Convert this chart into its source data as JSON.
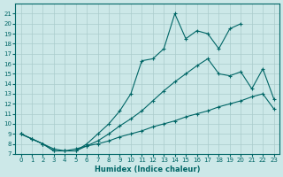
{
  "xlabel": "Humidex (Indice chaleur)",
  "bg_color": "#cce8e8",
  "grid_color": "#aacccc",
  "line_color": "#006666",
  "xlim": [
    -0.5,
    23.5
  ],
  "ylim": [
    7,
    22
  ],
  "yticks": [
    7,
    8,
    9,
    10,
    11,
    12,
    13,
    14,
    15,
    16,
    17,
    18,
    19,
    20,
    21
  ],
  "xticks": [
    0,
    1,
    2,
    3,
    4,
    5,
    6,
    7,
    8,
    9,
    10,
    11,
    12,
    13,
    14,
    15,
    16,
    17,
    18,
    19,
    20,
    21,
    22,
    23
  ],
  "line1_x": [
    0,
    1,
    2,
    3,
    4,
    5,
    6,
    7,
    8,
    9,
    10,
    11,
    12,
    13,
    14,
    15,
    16,
    17,
    18,
    19,
    20,
    21,
    22,
    23
  ],
  "line1_y": [
    9,
    8.5,
    8.0,
    7.5,
    7.3,
    7.5,
    7.8,
    8.0,
    8.3,
    8.7,
    9.0,
    9.3,
    9.7,
    10.0,
    10.3,
    10.7,
    11.0,
    11.3,
    11.7,
    12.0,
    12.3,
    12.7,
    13.0,
    11.5
  ],
  "line2_x": [
    0,
    1,
    2,
    3,
    4,
    5,
    6,
    7,
    8,
    9,
    10,
    11,
    12,
    13,
    14,
    15,
    16,
    17,
    18,
    19,
    20,
    21,
    22,
    23
  ],
  "line2_y": [
    9,
    8.5,
    8.0,
    7.3,
    7.3,
    7.3,
    7.8,
    8.3,
    9.0,
    9.8,
    10.5,
    11.3,
    12.3,
    13.3,
    14.2,
    15.0,
    15.8,
    16.5,
    15.0,
    14.8,
    15.2,
    13.5,
    15.5,
    12.5
  ],
  "line3_x": [
    0,
    1,
    2,
    3,
    4,
    5,
    6,
    7,
    8,
    9,
    10,
    11,
    12,
    13,
    14,
    15,
    16,
    17,
    18,
    19,
    20
  ],
  "line3_y": [
    9,
    8.5,
    8.0,
    7.3,
    7.3,
    7.3,
    8.0,
    9.0,
    10.0,
    11.3,
    13.0,
    16.3,
    16.5,
    17.5,
    21.0,
    18.5,
    19.3,
    19.0,
    17.5,
    19.5,
    20.0
  ]
}
